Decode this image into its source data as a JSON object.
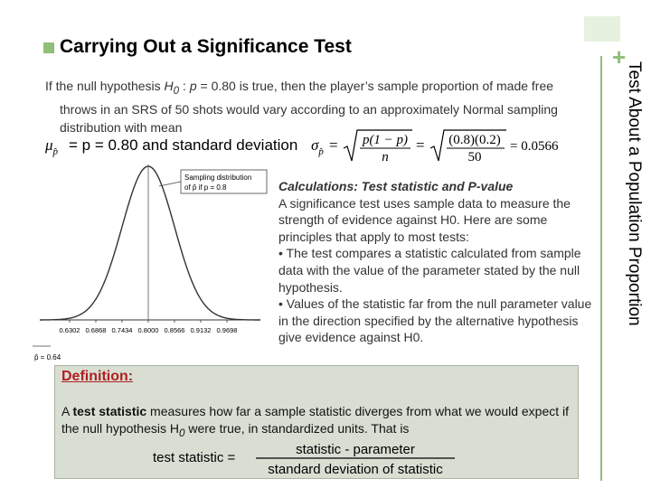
{
  "side_title": "Test About a Population Proportion",
  "plus_symbol": "+",
  "heading": "Carrying Out a Significance Test",
  "intro": {
    "pre": "If the null hypothesis ",
    "h0": "H",
    "h0_sub": "0",
    "mid": " : ",
    "p_eq": "p",
    "rest": " = 0.80 is true, then the player’s sample proportion of made free throws in an SRS of 50 shots would vary according to an approximately Normal sampling distribution with mean"
  },
  "formula": {
    "mu_eq": "= p = 0.80 and standard deviation",
    "numerator": "p(1 − p)",
    "denominator": "n",
    "numerator2": "(0.8)(0.2)",
    "denominator2": "50",
    "result": "= 0.0566"
  },
  "curve": {
    "label_line1": "Sampling distribution",
    "label_line2": "of p̂ if p = 0.8",
    "obs_label": "p̂ = 0.64",
    "ticks": [
      "0.6302",
      "0.6868",
      "0.7434",
      "0.8000",
      "0.8566",
      "0.9132",
      "0.9698"
    ]
  },
  "calc": {
    "heading": "Calculations: Test statistic and P-value",
    "body": "A significance test uses sample data to measure the strength of evidence against H0. Here are some principles that apply to most tests:",
    "bullet1": "• The test compares a statistic calculated from sample data with the value of the parameter stated by the null hypothesis.",
    "bullet2": "• Values of the statistic far from the null parameter value in the direction specified by the alternative hypothesis give evidence against H0."
  },
  "definition": {
    "title": "Definition:",
    "text_pre": "A ",
    "text_bold": "test statistic",
    "text_post": " measures how far a sample statistic diverges from what we would expect if the null hypothesis H",
    "text_sub": "0",
    "text_end": " were true, in standardized units. That is",
    "lhs": "test statistic  =",
    "numerator": "statistic  -  parameter",
    "denominator": "standard deviation of statistic"
  },
  "colors": {
    "accent_green": "#8fbf7a",
    "definition_bg": "#d9ded3",
    "definition_title": "#b02020"
  }
}
